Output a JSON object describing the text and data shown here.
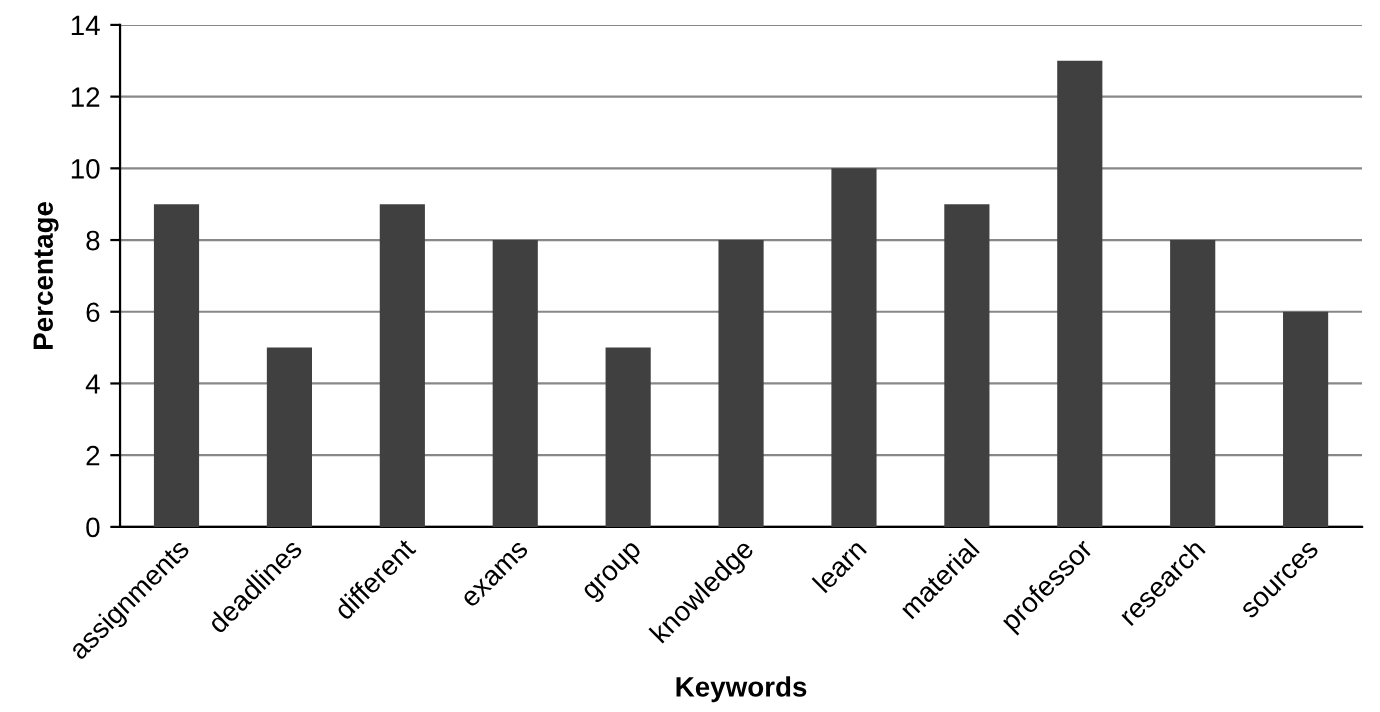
{
  "chart_data": {
    "type": "bar",
    "categories": [
      "assignments",
      "deadlines",
      "different",
      "exams",
      "group",
      "knowledge",
      "learn",
      "material",
      "professor",
      "research",
      "sources"
    ],
    "values": [
      9,
      5,
      9,
      8,
      5,
      8,
      10,
      9,
      13,
      8,
      6
    ],
    "color": "#404040",
    "xlabel": "Keywords",
    "ylabel": "Percentage",
    "ylim": [
      0,
      14
    ],
    "yticks": [
      0,
      2,
      4,
      6,
      8,
      10,
      12,
      14
    ],
    "grid": "y",
    "legend": false
  }
}
